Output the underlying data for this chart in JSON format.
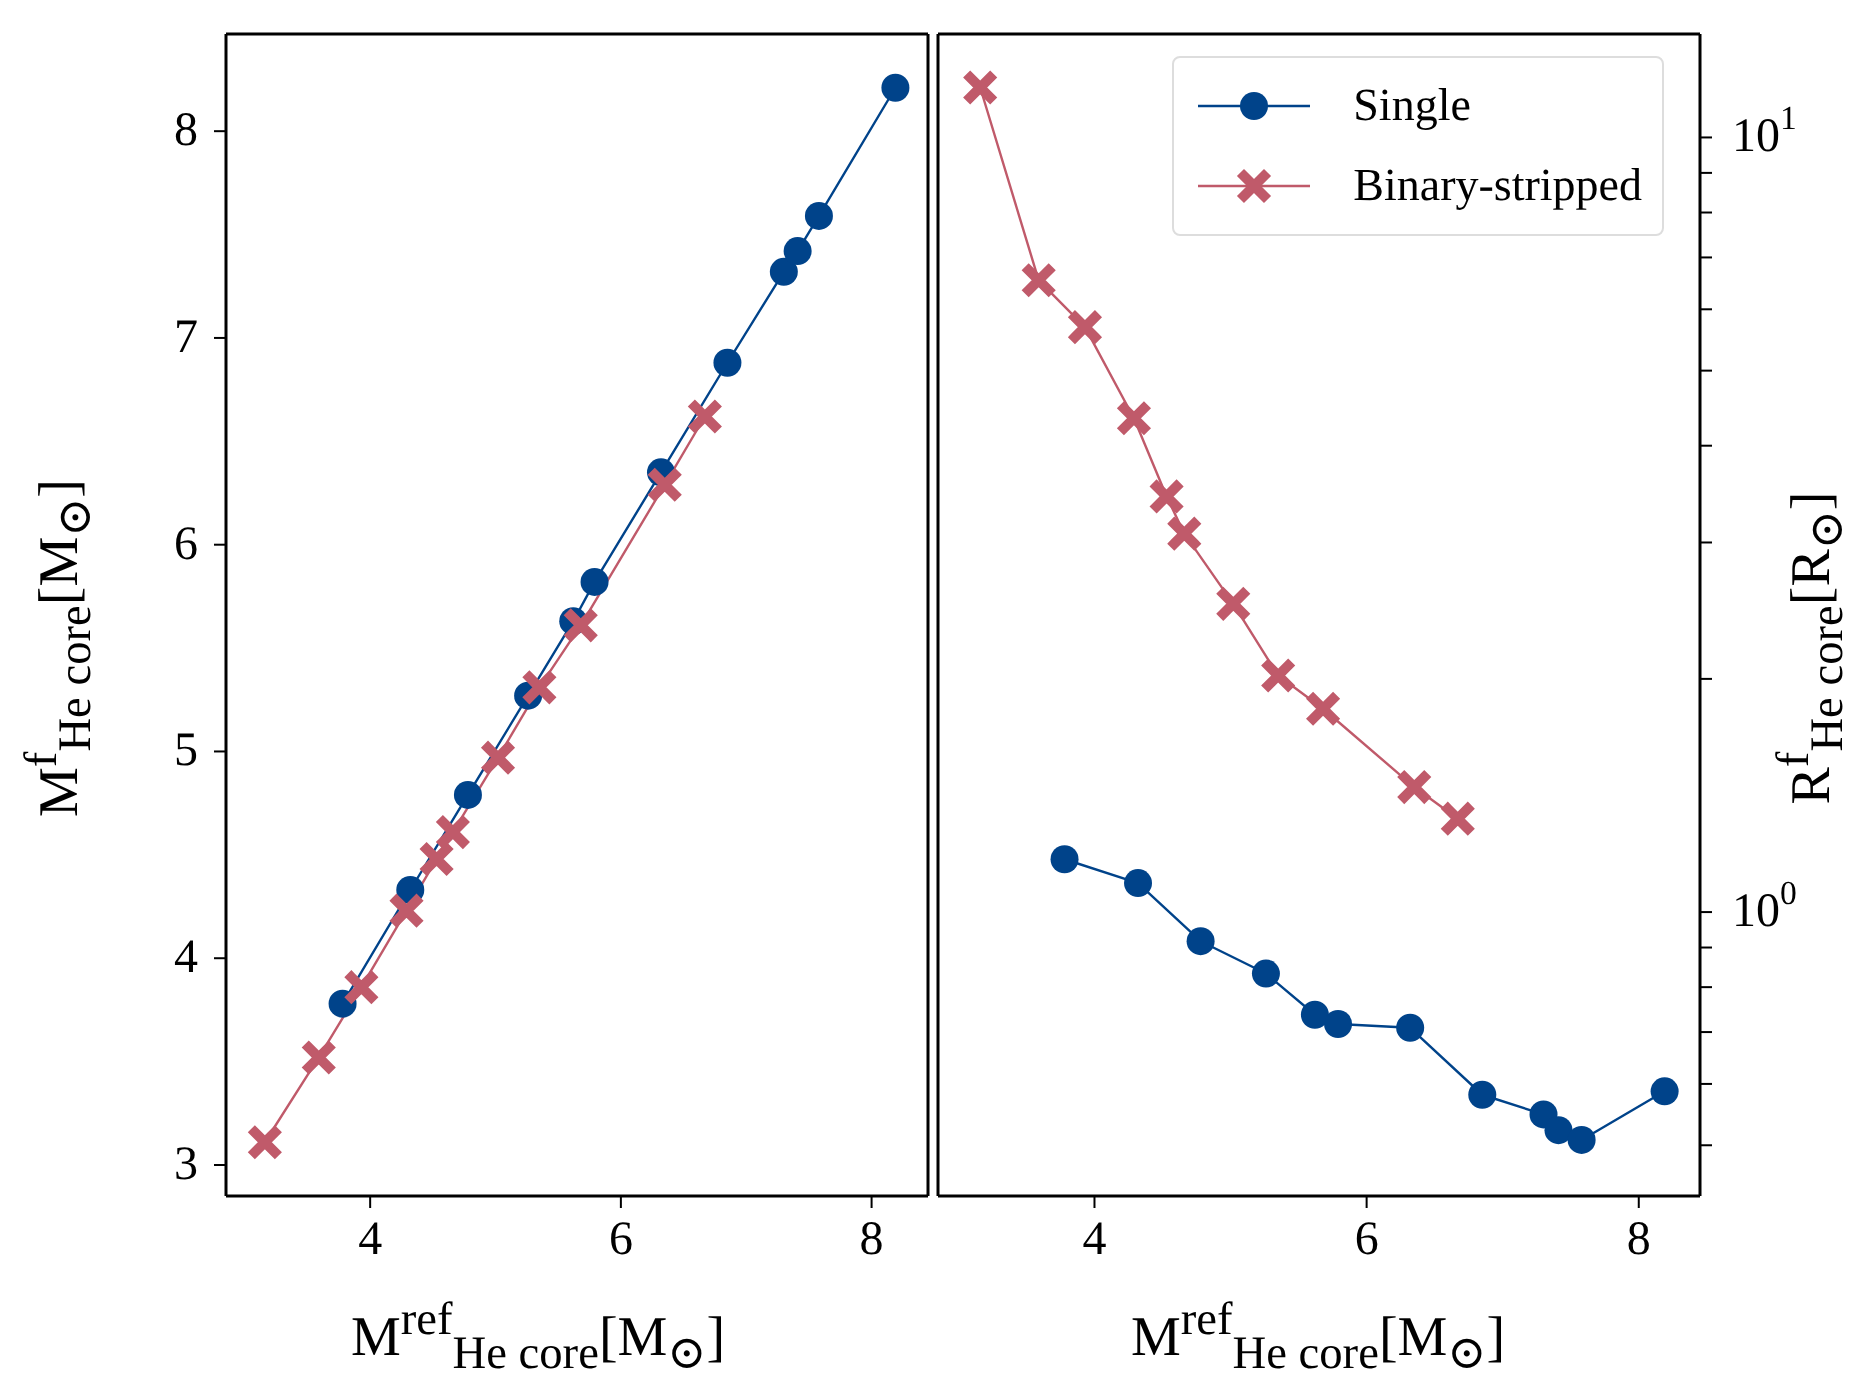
{
  "chart_data": [
    {
      "type": "line",
      "xlabel": "M$^{ref}$$_{He core}$[M$_{⊙}$]",
      "ylabel": "M$^{f}$$_{He core}$[M$_{⊙}$]",
      "xlim": [
        2.85,
        8.45
      ],
      "xticks": [
        4,
        6,
        8
      ],
      "ylim": [
        2.85,
        8.47
      ],
      "yticks": [
        3,
        4,
        5,
        6,
        7,
        8
      ],
      "legend": false,
      "line_style": "solid",
      "series": [
        {
          "color": "#00438a",
          "marker": "circle",
          "x": [
            3.78,
            4.32,
            4.78,
            5.26,
            5.62,
            5.79,
            6.32,
            6.85,
            7.3,
            7.41,
            7.58,
            8.19
          ],
          "values": [
            3.78,
            4.33,
            4.79,
            5.27,
            5.63,
            5.82,
            6.35,
            6.88,
            7.32,
            7.42,
            7.59,
            8.21
          ]
        },
        {
          "color": "#c05a6a",
          "marker": "cross",
          "x": [
            3.16,
            3.59,
            3.93,
            4.29,
            4.53,
            4.66,
            5.02,
            5.35,
            5.68,
            6.35,
            6.67
          ],
          "values": [
            3.11,
            3.52,
            3.86,
            4.23,
            4.48,
            4.61,
            4.97,
            5.31,
            5.61,
            6.29,
            6.62
          ]
        }
      ]
    },
    {
      "type": "line",
      "xlabel": "M$^{ref}$$_{He core}$[M$_{⊙}$]",
      "ylabel": "R$^{f}$$_{He core}$[R$_{⊙}$]",
      "xlim": [
        2.85,
        8.45
      ],
      "xticks": [
        4,
        6,
        8
      ],
      "log": "y",
      "ylim": [
        0.43,
        13.6
      ],
      "yticks": [
        {
          "value": 0.5,
          "label": null
        },
        {
          "value": 0.6,
          "label": null
        },
        {
          "value": 0.7,
          "label": null
        },
        {
          "value": 0.8,
          "label": null
        },
        {
          "value": 0.9,
          "label": null
        },
        {
          "value": 1,
          "label": "10$^{0}$"
        },
        {
          "value": 2,
          "label": null
        },
        {
          "value": 3,
          "label": null
        },
        {
          "value": 4,
          "label": null
        },
        {
          "value": 5,
          "label": null
        },
        {
          "value": 6,
          "label": null
        },
        {
          "value": 7,
          "label": null
        },
        {
          "value": 8,
          "label": null
        },
        {
          "value": 9,
          "label": null
        },
        {
          "value": 10,
          "label": "10$^{1}$"
        }
      ],
      "legend": "top right",
      "line_style": "solid",
      "series": [
        {
          "name": "Single",
          "color": "#00438a",
          "marker": "circle",
          "x": [
            3.78,
            4.32,
            4.78,
            5.26,
            5.62,
            5.79,
            6.32,
            6.85,
            7.3,
            7.41,
            7.58,
            8.19
          ],
          "values": [
            1.17,
            1.09,
            0.917,
            0.833,
            0.737,
            0.717,
            0.709,
            0.581,
            0.548,
            0.523,
            0.508,
            0.587
          ]
        },
        {
          "name": "Binary-stripped",
          "color": "#c05a6a",
          "marker": "cross",
          "x": [
            3.16,
            3.59,
            3.93,
            4.29,
            4.53,
            4.66,
            5.02,
            5.35,
            5.68,
            6.35,
            6.67
          ],
          "values": [
            11.6,
            6.54,
            5.69,
            4.34,
            3.44,
            3.08,
            2.5,
            2.02,
            1.83,
            1.45,
            1.32
          ]
        }
      ]
    }
  ]
}
